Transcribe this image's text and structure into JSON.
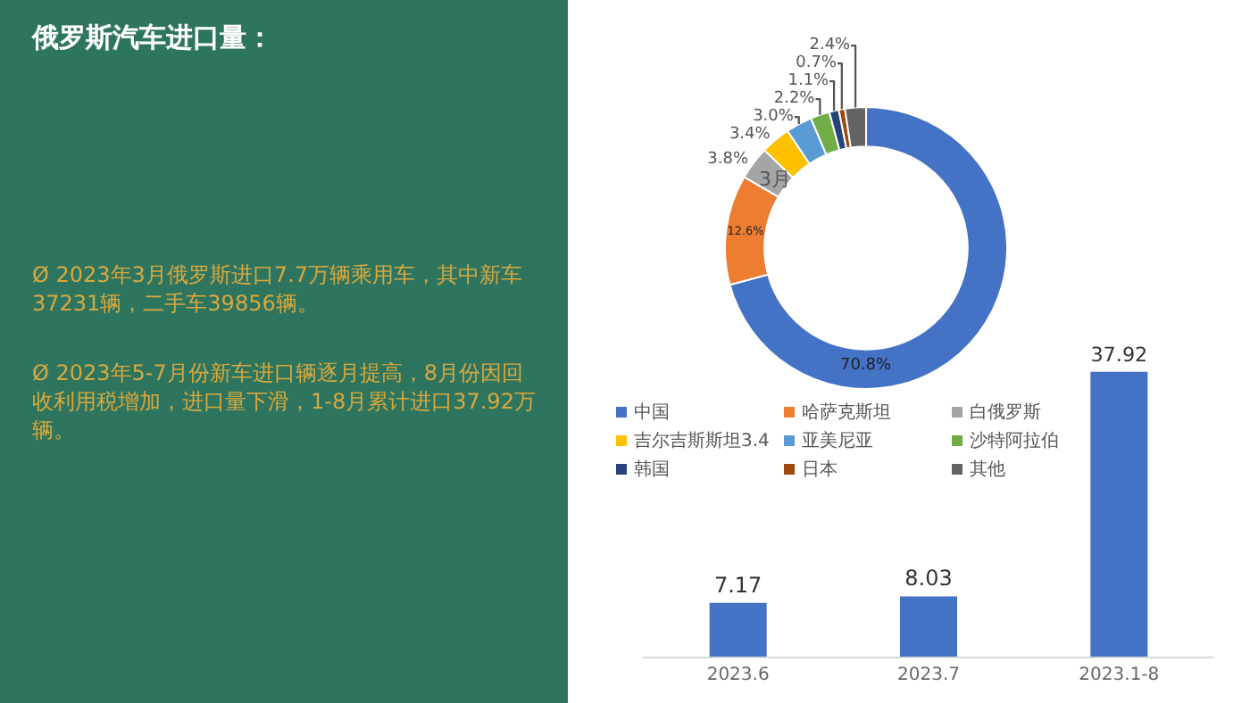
{
  "chart_data": [
    {
      "type": "other",
      "title": "俄罗斯汽车进口量：",
      "annotations": [
        "Ø      2023年3月俄罗斯进口7.7万辆乘用车，其中新车37231辆，二手车39856辆。",
        "Ø      2023年5-7月份新车进口辆逐月提高，8月份因回收利用税增加，进口量下滑，1-8月累计进口37.92万辆。"
      ]
    },
    {
      "type": "donut",
      "title": "3月",
      "categories": [
        "中国",
        "哈萨克斯坦",
        "白俄罗斯",
        "吉尔吉斯斯坦3.4",
        "亚美尼亚",
        "沙特阿拉伯",
        "韩国",
        "日本",
        "其他"
      ],
      "values": [
        70.8,
        12.6,
        3.8,
        3.4,
        3.0,
        2.2,
        1.1,
        0.7,
        2.4
      ],
      "value_labels": [
        "70.8%",
        "12.6%",
        "3.8%",
        "3.4%",
        "3.0%",
        "2.2%",
        "1.1%",
        "0.7%",
        "2.4%"
      ],
      "colors": [
        "#4472c4",
        "#ed7d31",
        "#a5a5a5",
        "#ffc000",
        "#5b9bd5",
        "#70ad47",
        "#264478",
        "#9e480e",
        "#636363"
      ],
      "legend": "bottom"
    },
    {
      "type": "bar",
      "categories": [
        "2023.6",
        "2023.7",
        "2023.1-8"
      ],
      "values": [
        7.17,
        8.03,
        37.92
      ],
      "color": "#4472c4",
      "data_labels": true
    }
  ]
}
